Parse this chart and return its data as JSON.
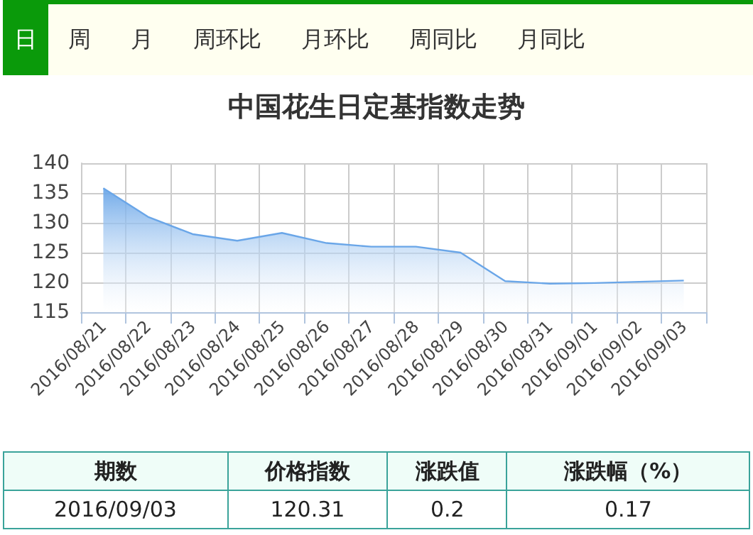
{
  "chart_data": {
    "type": "area",
    "title": "中国花生日定基指数走势",
    "categories": [
      "2016/08/21",
      "2016/08/22",
      "2016/08/23",
      "2016/08/24",
      "2016/08/25",
      "2016/08/26",
      "2016/08/27",
      "2016/08/28",
      "2016/08/29",
      "2016/08/30",
      "2016/08/31",
      "2016/09/01",
      "2016/09/02",
      "2016/09/03"
    ],
    "series": [
      {
        "color": "#6aa6e8",
        "values": [
          135.8,
          131.0,
          128.1,
          127.0,
          128.3,
          126.6,
          126.0,
          126.0,
          125.0,
          120.2,
          119.8,
          119.9,
          120.1,
          120.31
        ]
      }
    ],
    "ylim": [
      115,
      140
    ],
    "yticks": [
      115,
      120,
      125,
      130,
      135,
      140
    ],
    "grid": true,
    "marker": "none",
    "line_style": "solid",
    "annotations": [
      "日",
      "周",
      "月",
      "周环比",
      "月环比",
      "周同比",
      "月同比",
      "期数",
      "价格指数",
      "涨跌值",
      "涨跌幅（%）",
      "2016/09/03",
      "120.31",
      "0.2",
      "0.17"
    ]
  }
}
